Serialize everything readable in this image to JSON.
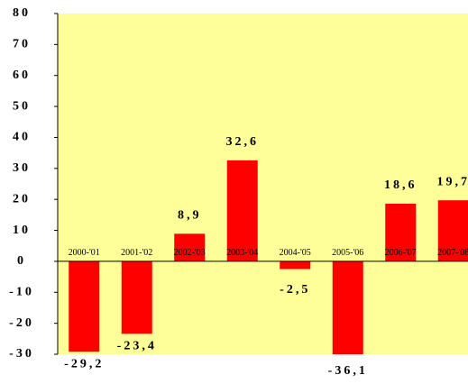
{
  "chart_data": {
    "type": "bar",
    "categories": [
      "2000-'01",
      "2001-'02",
      "2002-'03",
      "2003-'04",
      "2004-'05",
      "2005-'06",
      "2006-'07",
      "2007-'08"
    ],
    "values": [
      -29.2,
      -23.4,
      8.9,
      32.6,
      -2.5,
      -36.1,
      18.6,
      19.7
    ],
    "value_labels": [
      "-29,2",
      "-23,4",
      "8,9",
      "32,6",
      "-2,5",
      "-36,1",
      "18,6",
      "19,7"
    ],
    "color": "#ff0000",
    "ylim": [
      -30,
      80
    ],
    "yticks": [
      -30,
      -20,
      -10,
      0,
      10,
      20,
      30,
      40,
      50,
      60,
      70,
      80
    ]
  }
}
